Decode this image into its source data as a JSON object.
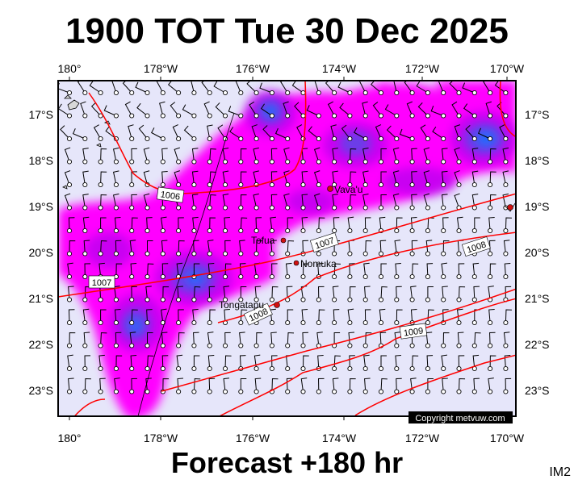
{
  "title": "1900 TOT Tue 30 Dec 2025",
  "subtitle": "Forecast +180 hr",
  "corner_code": "IM2",
  "copyright": "Copyright metvuw.com",
  "colors": {
    "ocean": "#e6e6fa",
    "precip_light": "#ff00ff",
    "precip_mid": "#c000f0",
    "precip_heavy": "#6a3ce8",
    "precip_core": "#1e70ff",
    "isobar": "#ff0000",
    "place_dot": "#d01010"
  },
  "map": {
    "lon_labels": [
      "180°",
      "178°W",
      "176°W",
      "174°W",
      "172°W",
      "170°W"
    ],
    "lat_labels": [
      "17°S",
      "18°S",
      "19°S",
      "20°S",
      "21°S",
      "22°S",
      "23°S"
    ],
    "places": [
      {
        "name": "Vava'u"
      },
      {
        "name": "Tofua"
      },
      {
        "name": "Nomuka"
      },
      {
        "name": "Tongatapu"
      }
    ],
    "isobar_labels": [
      {
        "value": "1006"
      },
      {
        "value": "1007"
      },
      {
        "value": "1007"
      },
      {
        "value": "1008"
      },
      {
        "value": "1008"
      },
      {
        "value": "1009"
      }
    ]
  }
}
